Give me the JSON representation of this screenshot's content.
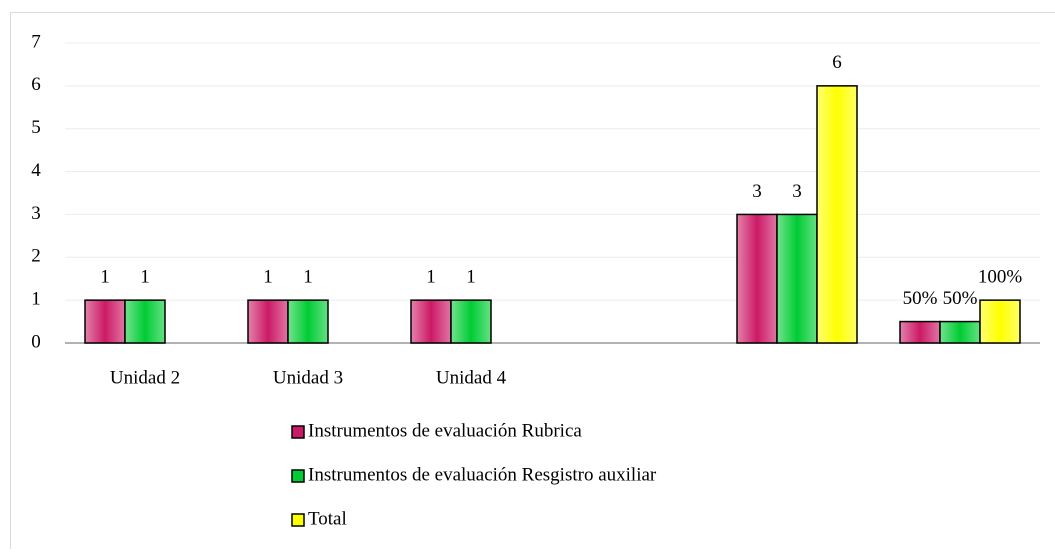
{
  "chart_data": {
    "type": "bar",
    "categories": [
      "Unidad 2",
      "Unidad 3",
      "Unidad 4",
      null,
      null,
      null
    ],
    "series": [
      {
        "name": "Instrumentos de evaluación Rubrica",
        "color": "#cc1a66",
        "values": [
          1,
          1,
          1,
          null,
          3,
          0.5
        ],
        "value_labels": [
          "1",
          "1",
          "1",
          null,
          "3",
          "50%"
        ]
      },
      {
        "name": "Instrumentos de evaluación Resgistro auxiliar",
        "color": "#00cc33",
        "values": [
          1,
          1,
          1,
          null,
          3,
          0.5
        ],
        "value_labels": [
          "1",
          "1",
          "1",
          null,
          "3",
          "50%"
        ]
      },
      {
        "name": "Total",
        "color": "#ffff00",
        "values": [
          null,
          null,
          null,
          null,
          6,
          1
        ],
        "value_labels": [
          null,
          null,
          null,
          null,
          "6",
          "100%"
        ]
      }
    ],
    "ylim": [
      0,
      7
    ],
    "yticks": [
      0,
      1,
      2,
      3,
      4,
      5,
      6,
      7
    ],
    "grid": true,
    "legend": "bottom"
  }
}
